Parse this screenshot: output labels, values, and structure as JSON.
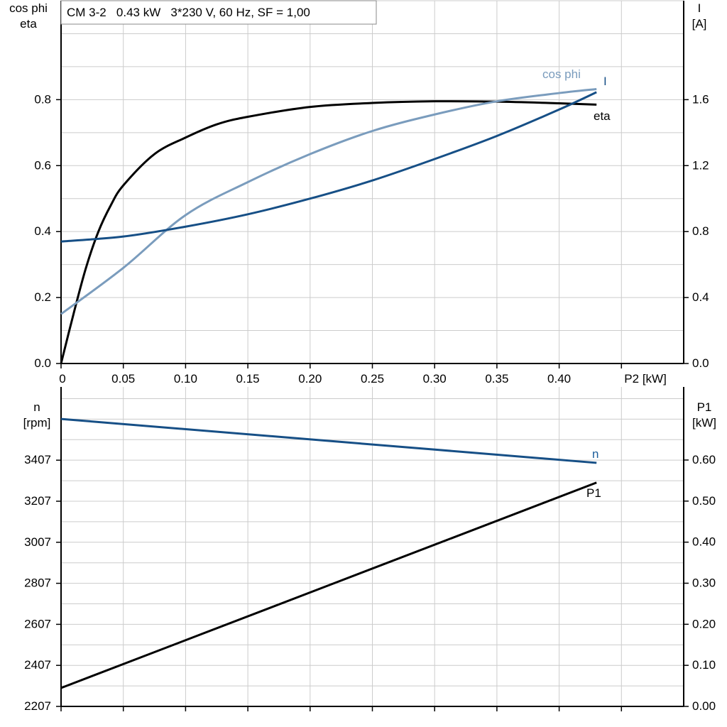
{
  "chart_data": [
    {
      "type": "line",
      "title": "CM 3-2   0.43 kW   3*230 V, 60 Hz, SF = 1,00",
      "xlabel": "P2 [kW]",
      "ylabel_left": [
        "cos phi",
        "eta"
      ],
      "ylabel_right": [
        "I",
        "[A]"
      ],
      "xlim": [
        0,
        0.5
      ],
      "ylim_left": [
        0,
        1.1
      ],
      "ylim_right": [
        0,
        2.2
      ],
      "x_ticks": [
        "0",
        "0.05",
        "0.10",
        "0.15",
        "0.20",
        "0.25",
        "0.30",
        "0.35",
        "0.40"
      ],
      "y_ticks_left": [
        "0.0",
        "0.2",
        "0.4",
        "0.6",
        "0.8"
      ],
      "y_ticks_right": [
        "0.0",
        "0.4",
        "0.8",
        "1.2",
        "1.6"
      ],
      "grid": true,
      "series": [
        {
          "name": "eta",
          "axis": "left",
          "color": "#000000",
          "x": [
            0,
            0.01,
            0.02,
            0.03,
            0.04,
            0.05,
            0.075,
            0.1,
            0.125,
            0.15,
            0.2,
            0.25,
            0.3,
            0.35,
            0.4,
            0.43
          ],
          "y": [
            0,
            0.15,
            0.29,
            0.4,
            0.48,
            0.54,
            0.635,
            0.685,
            0.725,
            0.748,
            0.778,
            0.79,
            0.795,
            0.794,
            0.789,
            0.785
          ]
        },
        {
          "name": "cos phi",
          "axis": "left",
          "color": "#7a9cbd",
          "x": [
            0,
            0.05,
            0.1,
            0.15,
            0.2,
            0.25,
            0.3,
            0.35,
            0.4,
            0.43
          ],
          "y": [
            0.15,
            0.29,
            0.45,
            0.55,
            0.635,
            0.705,
            0.755,
            0.795,
            0.82,
            0.832
          ]
        },
        {
          "name": "I",
          "axis": "right",
          "color": "#164f86",
          "x": [
            0,
            0.05,
            0.1,
            0.15,
            0.2,
            0.25,
            0.3,
            0.35,
            0.4,
            0.43
          ],
          "y": [
            0.74,
            0.77,
            0.83,
            0.905,
            1.0,
            1.11,
            1.24,
            1.38,
            1.54,
            1.645
          ]
        }
      ]
    },
    {
      "type": "line",
      "ylabel_left": [
        "n",
        "[rpm]"
      ],
      "ylabel_right": [
        "P1",
        "[kW]"
      ],
      "xlim": [
        0,
        0.5
      ],
      "ylim_left": [
        2207,
        3764
      ],
      "ylim_right": [
        0,
        0.778
      ],
      "y_ticks_left": [
        "2207",
        "2407",
        "2607",
        "2807",
        "3007",
        "3207",
        "3407"
      ],
      "y_ticks_right": [
        "0.00",
        "0.10",
        "0.20",
        "0.30",
        "0.40",
        "0.50",
        "0.60"
      ],
      "grid": true,
      "series": [
        {
          "name": "n",
          "axis": "left",
          "color": "#164f86",
          "x": [
            0,
            0.43
          ],
          "y": [
            3608,
            3394
          ]
        },
        {
          "name": "P1",
          "axis": "right",
          "color": "#000000",
          "x": [
            0,
            0.43
          ],
          "y": [
            0.045,
            0.545
          ]
        }
      ]
    }
  ]
}
